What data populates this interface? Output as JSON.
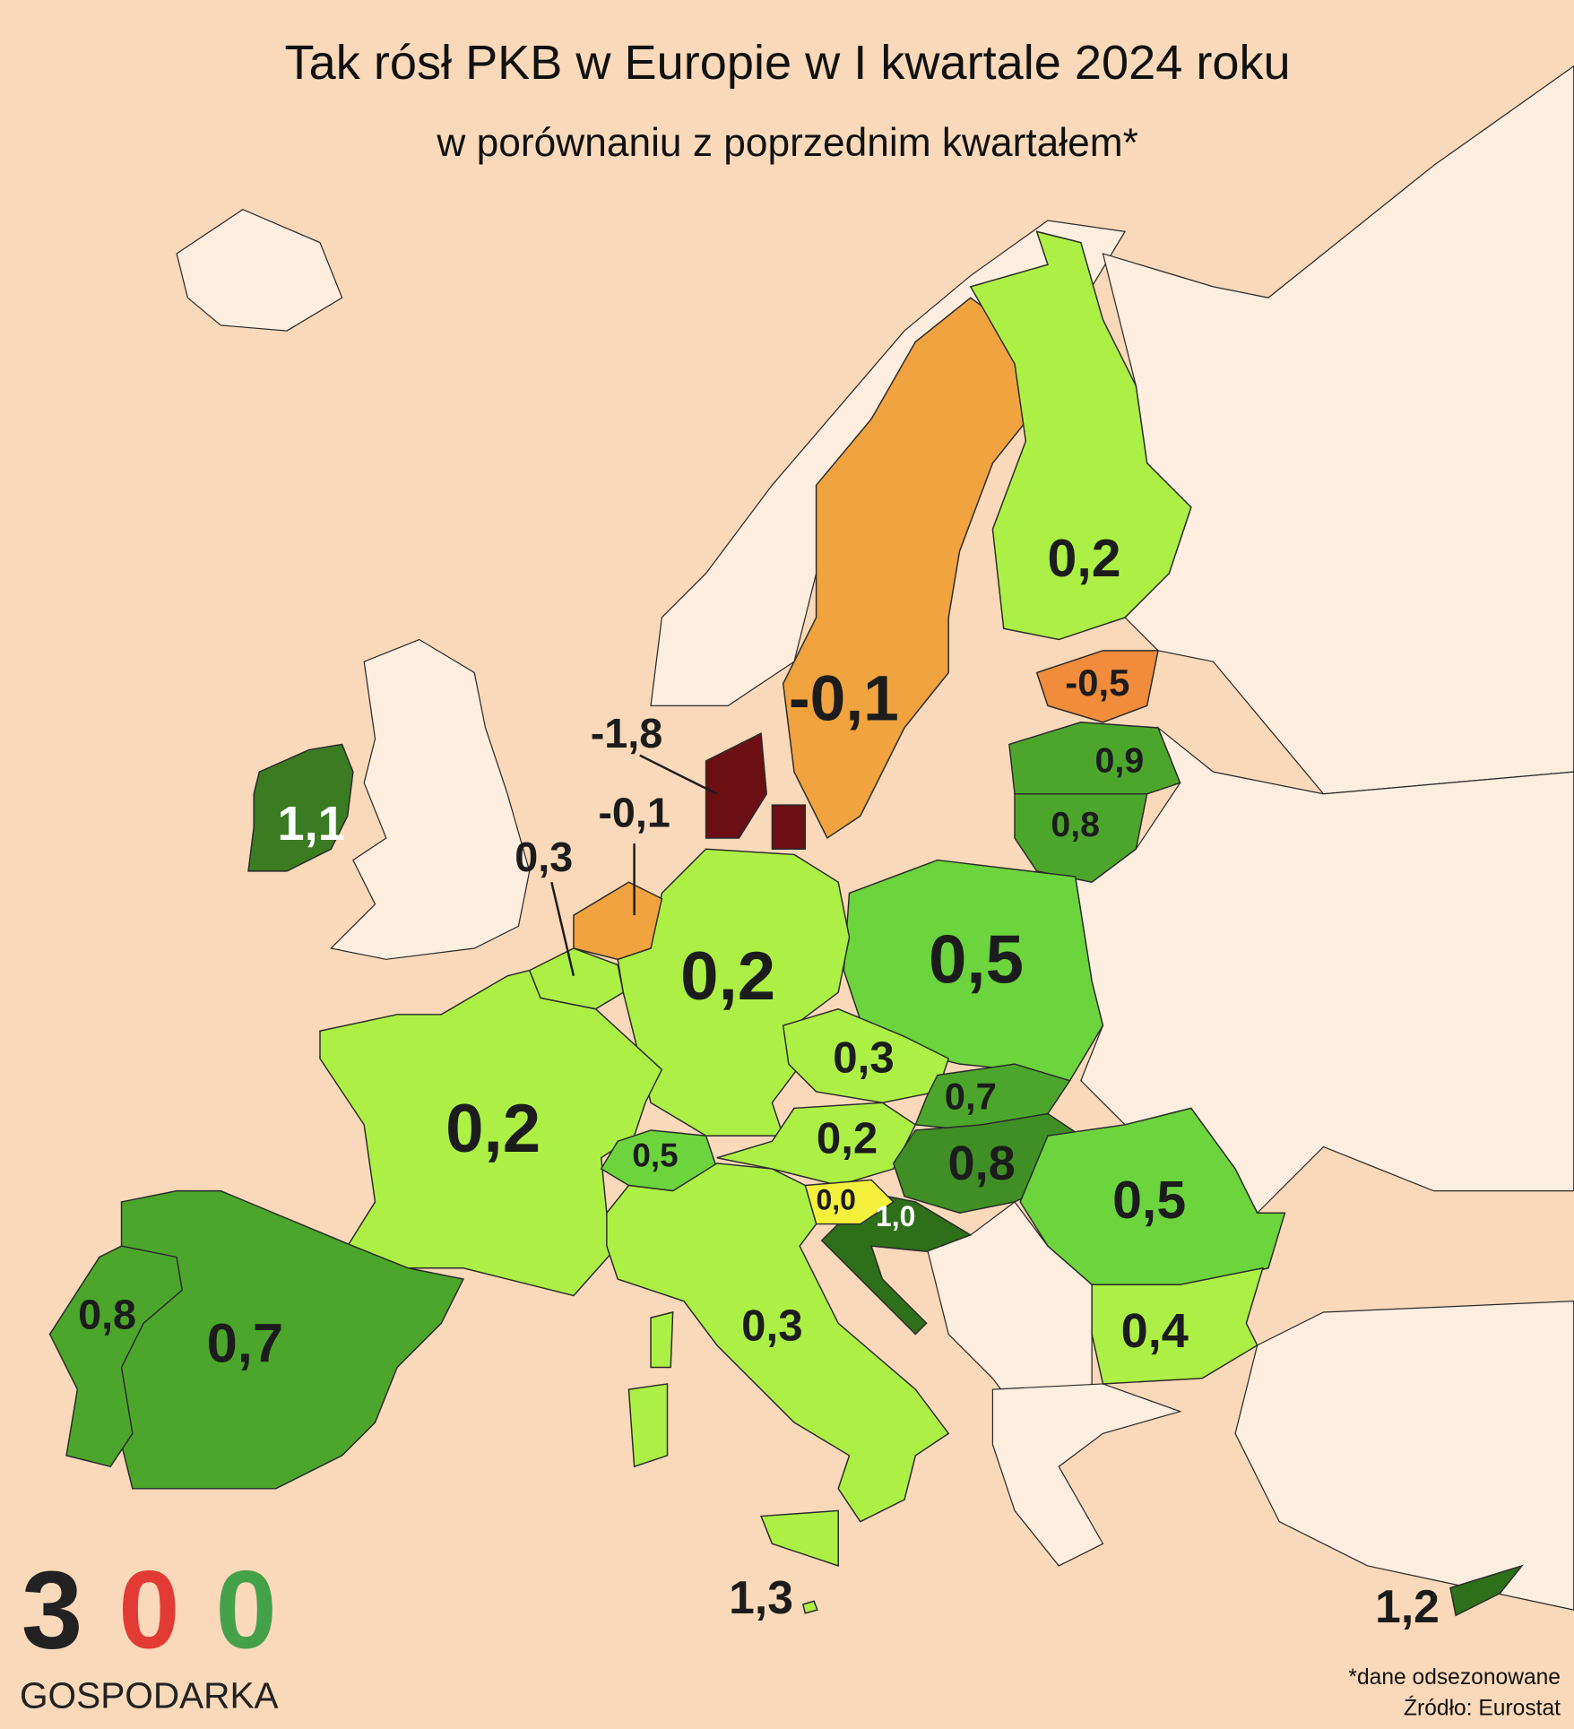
{
  "header": {
    "title": "Tak rósł PKB w Europie w I kwartale 2024 roku",
    "subtitle": "w porównaniu z poprzednim kwartałem*"
  },
  "regions": [
    {
      "label": "-0,1",
      "color": "#f0a33f"
    },
    {
      "label": "0,2",
      "color": "#adf045"
    },
    {
      "label": "-0,5",
      "color": "#f08c3c"
    },
    {
      "label": "0,9",
      "color": "#4ca62b"
    },
    {
      "label": "0,8",
      "color": "#4ca62b"
    },
    {
      "label": "0,5",
      "color": "#6cd43c"
    },
    {
      "label": "0,2",
      "color": "#adf045"
    },
    {
      "label": "0,2",
      "color": "#adf045"
    },
    {
      "label": "-0,1",
      "color": "#f0a33f"
    },
    {
      "label": "0,3",
      "color": "#adf045"
    },
    {
      "label": "-1,8",
      "color": "#6b0f12"
    },
    {
      "label": "1,1",
      "color": "#3b7b22"
    },
    {
      "label": "0,3",
      "color": "#adf045"
    },
    {
      "label": "0,7",
      "color": "#4ca62b"
    },
    {
      "label": "0,2",
      "color": "#adf045"
    },
    {
      "label": "0,8",
      "color": "#3f8f25"
    },
    {
      "label": "0,5",
      "color": "#6cd43c"
    },
    {
      "label": "0,4",
      "color": "#adf045"
    },
    {
      "label": "1,0",
      "color": "#2e6f1a"
    },
    {
      "label": "0,0",
      "color": "#f5f03c"
    },
    {
      "label": "0,5",
      "color": "#6cd43c"
    },
    {
      "label": "0,3",
      "color": "#adf045"
    },
    {
      "label": "0,7",
      "color": "#4ca62b"
    },
    {
      "label": "0,8",
      "color": "#4ca62b"
    },
    {
      "label": "1,3",
      "color": "#adf045"
    },
    {
      "label": "1,2",
      "color": "#2e6f1a"
    }
  ],
  "footnote": "*dane odsezonowane",
  "source": "Źródło: Eurostat",
  "logo": {
    "digits": [
      "3",
      "0",
      "0"
    ],
    "name": "GOSPODARKA"
  }
}
